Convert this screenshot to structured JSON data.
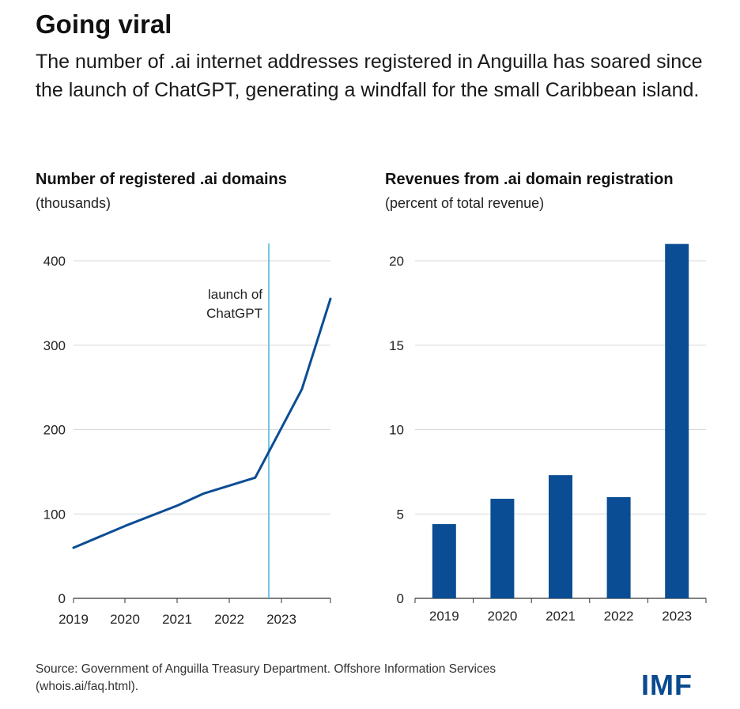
{
  "header": {
    "title": "Going viral",
    "subtitle": "The number of .ai internet addresses registered in Anguilla has soared since the launch of ChatGPT, generating a windfall for the small Caribbean island."
  },
  "chart_data": [
    {
      "type": "line",
      "title": "Number of registered .ai domains",
      "subtitle": "(thousands)",
      "xlabel": "",
      "ylabel": "",
      "x": [
        2019.0,
        2020.0,
        2021.0,
        2021.5,
        2022.5,
        2023.4,
        2023.95
      ],
      "xticks": [
        "2019",
        "2020",
        "2021",
        "2022",
        "2023"
      ],
      "series": [
        {
          "values": [
            60,
            86,
            110,
            124,
            143,
            248,
            355
          ],
          "color": "#0b4d94"
        }
      ],
      "ylim": [
        0,
        400
      ],
      "yticks": [
        0,
        100,
        200,
        300,
        400
      ],
      "grid": true,
      "annotation": {
        "text_line1": "launch of",
        "text_line2": "ChatGPT",
        "x": 2022.75,
        "color": "#4ab3e0"
      }
    },
    {
      "type": "bar",
      "title": "Revenues from .ai domain registration",
      "subtitle": "(percent of total revenue)",
      "xlabel": "",
      "ylabel": "",
      "categories": [
        "2019",
        "2020",
        "2021",
        "2022",
        "2023"
      ],
      "values": [
        4.4,
        5.9,
        7.3,
        6.0,
        21.0
      ],
      "ylim": [
        0,
        20
      ],
      "yticks": [
        0,
        5,
        10,
        15,
        20
      ],
      "grid": true,
      "color": "#0b4d94"
    }
  ],
  "footer": {
    "source_line1": "Source: Government of Anguilla Treasury Department. Offshore Information Services",
    "source_line2": "(whois.ai/faq.html).",
    "logo": "IMF"
  }
}
